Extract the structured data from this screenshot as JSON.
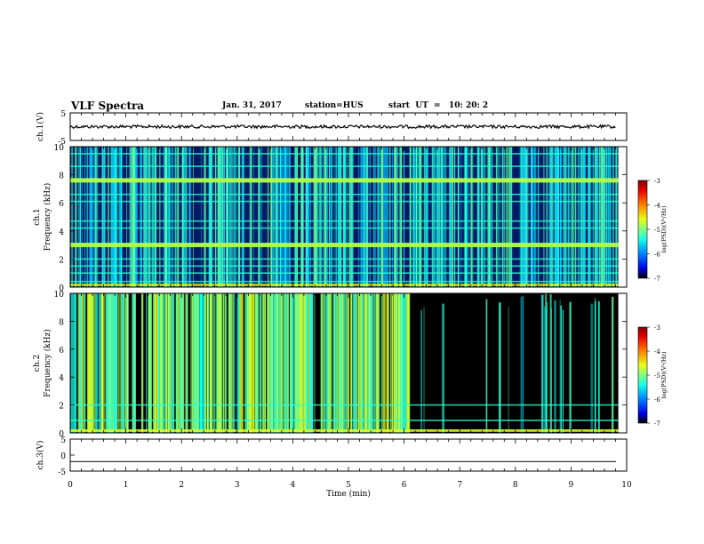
{
  "header": {
    "title": "VLF Spectra",
    "date": "Jan. 31, 2017",
    "station": "station=HUS",
    "start": "start  UT  =   10: 20: 2"
  },
  "chart_data": [
    {
      "type": "line",
      "name": "ch1-waveform",
      "ylabel": "ch.1(V)",
      "ylim": [
        -5,
        5
      ],
      "yticks": [
        "5",
        "-5"
      ],
      "xlim": [
        0,
        10
      ],
      "level": 0.0
    },
    {
      "type": "heatmap",
      "name": "ch1-spectrogram",
      "ylabel": "ch.1\nFrequency (kHz)",
      "ylabel_line1": "ch.1",
      "ylabel_line2": "Frequency (kHz)",
      "ylim": [
        0,
        10
      ],
      "yticks": [
        "0",
        "2",
        "4",
        "6",
        "8",
        "10"
      ],
      "xlim": [
        0,
        10
      ],
      "data_end_min": 9.85,
      "colorbar": {
        "label": "log(PSD)(V²/Hz)",
        "ticks": [
          "-3",
          "-4",
          "-5",
          "-6",
          "-7"
        ],
        "range": [
          -7,
          -3
        ]
      },
      "tone_lines_khz": [
        0.4,
        1.0,
        1.5,
        2.0,
        3.0,
        4.2,
        4.7,
        6.1,
        6.6,
        7.6,
        8.6,
        9.5
      ],
      "strong_tones_khz": [
        3.0,
        7.6
      ]
    },
    {
      "type": "heatmap",
      "name": "ch2-spectrogram",
      "ylabel": "ch.2\nFrequency (kHz)",
      "ylabel_line1": "ch.2",
      "ylabel_line2": "Frequency (kHz)",
      "ylim": [
        0,
        10
      ],
      "yticks": [
        "0",
        "2",
        "4",
        "6",
        "8",
        "10"
      ],
      "xlim": [
        0,
        10
      ],
      "data_end_min": 9.85,
      "colorbar": {
        "label": "log(PSD)(V²/Hz)",
        "ticks": [
          "-3",
          "-4",
          "-5",
          "-6",
          "-7"
        ],
        "range": [
          -7,
          -3
        ]
      },
      "active_until_min": 6.1,
      "tone_lines_khz": [
        0.2,
        0.9,
        2.0
      ]
    },
    {
      "type": "line",
      "name": "ch3-waveform",
      "ylabel": "ch.3(V)",
      "ylim": [
        -5,
        5
      ],
      "yticks": [
        "5",
        "0",
        "-5"
      ],
      "xlim": [
        0,
        10
      ],
      "level": -2.0,
      "xlabel": "Time (min)",
      "xticks": [
        "0",
        "1",
        "2",
        "3",
        "4",
        "5",
        "6",
        "7",
        "8",
        "9",
        "10"
      ]
    }
  ]
}
